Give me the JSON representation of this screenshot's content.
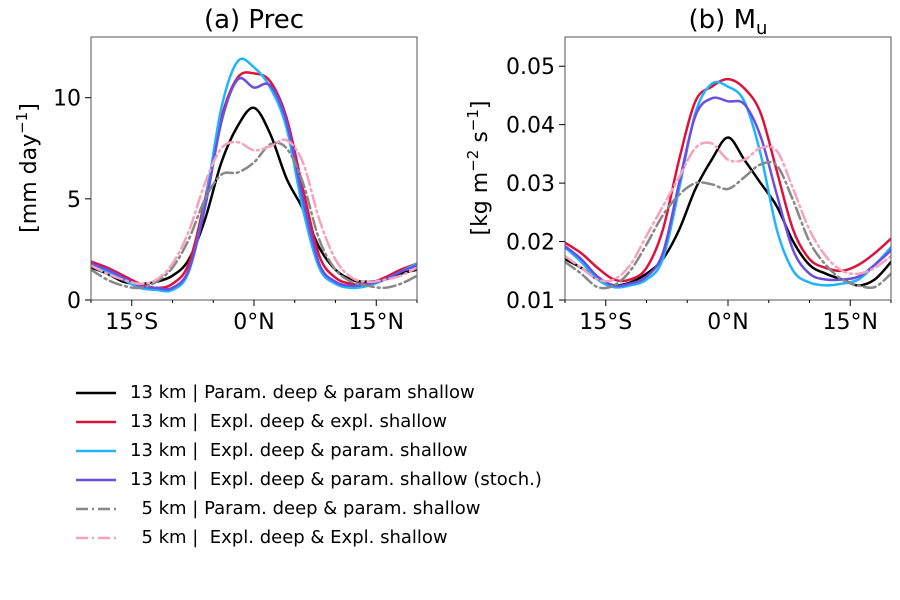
{
  "chart_data": [
    {
      "type": "line",
      "title": "(a) Prec",
      "ylabel": "[mm day⁻¹]",
      "ylabel_base": "[mm day",
      "ylabel_sup": "−1",
      "ylabel_end": "]",
      "xlim": [
        -20,
        20
      ],
      "ylim": [
        0,
        13
      ],
      "xticks": [
        -15,
        0,
        15
      ],
      "xtick_labels": [
        "15°S",
        "0°N",
        "15°N"
      ],
      "yticks": [
        0,
        5,
        10
      ],
      "ytick_labels": [
        "0",
        "5",
        "10"
      ],
      "grid": false,
      "x": [
        -20,
        -18,
        -16,
        -14,
        -12,
        -10,
        -8,
        -6,
        -4,
        -2,
        0,
        2,
        4,
        6,
        8,
        10,
        12,
        14,
        16,
        18,
        20
      ],
      "series": [
        {
          "name": "13 km | Param. deep & param shallow",
          "values": [
            1.6,
            1.3,
            0.9,
            0.8,
            0.9,
            1.2,
            2.0,
            4.0,
            6.8,
            8.6,
            9.5,
            8.2,
            6.0,
            4.5,
            2.6,
            1.5,
            1.0,
            0.9,
            1.0,
            1.3,
            1.5
          ]
        },
        {
          "name": "13 km |  Expl. deep & expl. shallow",
          "values": [
            1.9,
            1.6,
            1.2,
            0.8,
            0.6,
            0.8,
            1.8,
            5.0,
            9.0,
            11.0,
            11.2,
            10.8,
            9.0,
            5.5,
            2.2,
            1.1,
            0.8,
            0.8,
            1.1,
            1.5,
            1.8
          ]
        },
        {
          "name": "13 km |  Expl. deep & param. shallow",
          "values": [
            1.8,
            1.4,
            1.0,
            0.6,
            0.5,
            0.5,
            1.4,
            4.8,
            9.5,
            11.8,
            11.5,
            10.5,
            8.5,
            4.5,
            1.6,
            0.8,
            0.6,
            0.7,
            1.0,
            1.4,
            1.8
          ]
        },
        {
          "name": "13 km |  Expl. deep & param. shallow (stoch.)",
          "values": [
            1.8,
            1.5,
            1.1,
            0.7,
            0.6,
            0.6,
            1.5,
            4.6,
            8.8,
            10.9,
            10.5,
            10.6,
            8.8,
            5.0,
            1.8,
            0.9,
            0.7,
            0.8,
            1.0,
            1.4,
            1.7
          ]
        },
        {
          "name": "5 km | Param. deep & param. shallow",
          "values": [
            1.5,
            1.0,
            0.7,
            0.6,
            0.9,
            1.6,
            3.0,
            5.0,
            6.2,
            6.3,
            6.8,
            7.7,
            7.5,
            5.8,
            3.0,
            1.5,
            0.9,
            0.7,
            0.6,
            0.8,
            1.2
          ]
        },
        {
          "name": "5 km |  Expl. deep & Expl. shallow",
          "values": [
            1.7,
            1.3,
            1.0,
            0.8,
            1.0,
            1.8,
            3.4,
            5.8,
            7.5,
            7.8,
            7.4,
            7.6,
            7.9,
            6.8,
            4.0,
            2.0,
            1.1,
            0.9,
            1.0,
            1.2,
            1.6
          ]
        }
      ]
    },
    {
      "type": "line",
      "title": "(b) Mu",
      "title_base": "(b) M",
      "title_sub": "u",
      "ylabel": "[kg m⁻² s⁻¹]",
      "ylabel_base": "[kg m",
      "ylabel_sup1": "−2",
      "ylabel_mid": " s",
      "ylabel_sup2": "−1",
      "ylabel_end": "]",
      "xlim": [
        -20,
        20
      ],
      "ylim": [
        0.01,
        0.055
      ],
      "xticks": [
        -15,
        0,
        15
      ],
      "xtick_labels": [
        "15°S",
        "0°N",
        "15°N"
      ],
      "yticks": [
        0.01,
        0.02,
        0.03,
        0.04,
        0.05
      ],
      "ytick_labels": [
        "0.01",
        "0.02",
        "0.03",
        "0.04",
        "0.05"
      ],
      "grid": false,
      "x": [
        -20,
        -18,
        -16,
        -14,
        -12,
        -10,
        -8,
        -6,
        -4,
        -2,
        0,
        2,
        4,
        6,
        8,
        10,
        12,
        14,
        16,
        18,
        20
      ],
      "series": [
        {
          "name": "13 km | Param. deep & param shallow",
          "values": [
            0.017,
            0.0155,
            0.0135,
            0.0125,
            0.013,
            0.0145,
            0.017,
            0.022,
            0.029,
            0.034,
            0.0378,
            0.034,
            0.03,
            0.026,
            0.02,
            0.016,
            0.0145,
            0.0135,
            0.0125,
            0.0135,
            0.0165
          ]
        },
        {
          "name": "13 km |  Expl. deep & expl. shallow",
          "values": [
            0.0198,
            0.018,
            0.0155,
            0.0135,
            0.0135,
            0.0155,
            0.022,
            0.034,
            0.044,
            0.0465,
            0.0478,
            0.0462,
            0.042,
            0.032,
            0.022,
            0.017,
            0.0155,
            0.015,
            0.016,
            0.018,
            0.0205
          ]
        },
        {
          "name": "13 km |  Expl. deep & param. shallow",
          "values": [
            0.019,
            0.0165,
            0.0135,
            0.0122,
            0.0125,
            0.0135,
            0.017,
            0.029,
            0.042,
            0.047,
            0.0465,
            0.044,
            0.035,
            0.022,
            0.015,
            0.013,
            0.0125,
            0.0128,
            0.0135,
            0.016,
            0.019
          ]
        },
        {
          "name": "13 km |  Expl. deep & param. shallow (stoch.)",
          "values": [
            0.0192,
            0.017,
            0.014,
            0.0125,
            0.0128,
            0.014,
            0.018,
            0.03,
            0.0415,
            0.0445,
            0.044,
            0.0435,
            0.038,
            0.028,
            0.0185,
            0.0145,
            0.0135,
            0.0135,
            0.014,
            0.016,
            0.0185
          ]
        },
        {
          "name": "5 km | Param. deep & param. shallow",
          "values": [
            0.0165,
            0.0145,
            0.0122,
            0.0125,
            0.015,
            0.0195,
            0.0245,
            0.028,
            0.03,
            0.0298,
            0.029,
            0.031,
            0.0332,
            0.033,
            0.027,
            0.02,
            0.016,
            0.0135,
            0.0125,
            0.0122,
            0.0145
          ]
        },
        {
          "name": "5 km |  Expl. deep & Expl. shallow",
          "values": [
            0.0175,
            0.0155,
            0.0135,
            0.0135,
            0.016,
            0.021,
            0.026,
            0.031,
            0.036,
            0.0368,
            0.034,
            0.034,
            0.036,
            0.0355,
            0.029,
            0.022,
            0.0175,
            0.015,
            0.0145,
            0.0155,
            0.0175
          ]
        }
      ]
    }
  ],
  "legend": {
    "placement": "below",
    "entries": [
      {
        "label": "13 km | Param. deep & param shallow",
        "color": "#000000",
        "dash": "solid"
      },
      {
        "label": "13 km |  Expl. deep & expl. shallow",
        "color": "#dc143c",
        "dash": "solid"
      },
      {
        "label": "13 km |  Expl. deep & param. shallow",
        "color": "#1eb4ff",
        "dash": "solid"
      },
      {
        "label": "13 km |  Expl. deep & param. shallow (stoch.)",
        "color": "#6a4fe0",
        "dash": "solid"
      },
      {
        "label": "  5 km | Param. deep & param. shallow",
        "color": "#888888",
        "dash": "dashdot"
      },
      {
        "label": "  5 km |  Expl. deep & Expl. shallow",
        "color": "#f7a1c0",
        "dash": "dashdot"
      }
    ]
  }
}
